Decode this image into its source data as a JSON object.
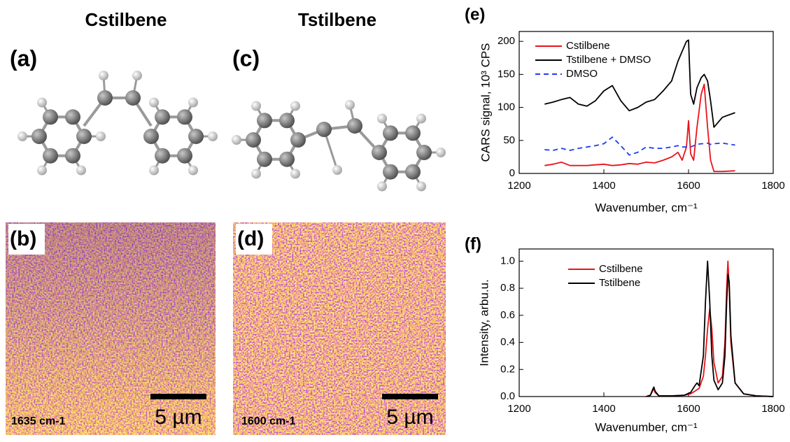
{
  "columns": [
    "Cstilbene",
    "Tstilbene"
  ],
  "panels": {
    "a": "(a)",
    "b": "(b)",
    "c": "(c)",
    "d": "(d)",
    "e": "(e)",
    "f": "(f)"
  },
  "maps": [
    {
      "wavenumber": "1635 cm-1",
      "scale": "5 µm"
    },
    {
      "wavenumber": "1600 cm-1",
      "scale": "5 µm"
    }
  ],
  "chart_data": [
    {
      "type": "line",
      "x_label": "Wavenumber, cm⁻¹",
      "y_label": "CARS signal, 10³ CPS",
      "xlim": [
        1200,
        1800
      ],
      "xticks": [
        1200,
        1400,
        1600,
        1800
      ],
      "ylim": [
        0,
        215
      ],
      "yticks": [
        0,
        50,
        100,
        150,
        200
      ],
      "x": [
        1260,
        1280,
        1300,
        1320,
        1340,
        1360,
        1380,
        1400,
        1420,
        1440,
        1460,
        1480,
        1500,
        1520,
        1540,
        1560,
        1575,
        1585,
        1595,
        1600,
        1605,
        1612,
        1620,
        1630,
        1637,
        1645,
        1652,
        1660,
        1680,
        1710
      ],
      "series": [
        {
          "name": "Cstilbene",
          "color": "#e8141b",
          "dashed": false,
          "values": [
            12,
            14,
            17,
            12,
            12,
            12,
            13,
            14,
            12,
            13,
            15,
            14,
            17,
            16,
            20,
            25,
            32,
            20,
            40,
            80,
            30,
            20,
            70,
            120,
            135,
            70,
            20,
            3,
            3,
            4
          ]
        },
        {
          "name": "Tstilbene + DMSO",
          "color": "#000000",
          "dashed": false,
          "values": [
            105,
            108,
            112,
            115,
            105,
            102,
            110,
            125,
            133,
            110,
            95,
            100,
            108,
            112,
            125,
            140,
            170,
            185,
            200,
            202,
            120,
            105,
            130,
            145,
            150,
            140,
            110,
            70,
            85,
            92
          ]
        },
        {
          "name": "DMSO",
          "color": "#1f3cf0",
          "dashed": true,
          "values": [
            36,
            35,
            38,
            35,
            38,
            40,
            42,
            45,
            55,
            42,
            28,
            32,
            40,
            38,
            38,
            40,
            42,
            40,
            40,
            40,
            40,
            42,
            44,
            45,
            45,
            46,
            44,
            45,
            46,
            43
          ]
        }
      ]
    },
    {
      "type": "line",
      "x_label": "Wavenumber, cm⁻¹",
      "y_label": "Intensity, arbu.u.",
      "xlim": [
        1200,
        1800
      ],
      "xticks": [
        1200,
        1400,
        1600,
        1800
      ],
      "ylim": [
        0,
        1.09
      ],
      "yticks": [
        {
          "value": 0,
          "label": "0.0"
        },
        {
          "value": 0.2,
          "label": "0.2"
        },
        {
          "value": 0.4,
          "label": "0.4"
        },
        {
          "value": 0.6,
          "label": "0.6"
        },
        {
          "value": 0.8,
          "label": "0.8"
        },
        {
          "value": 1,
          "label": "1.0"
        }
      ],
      "x": [
        1500,
        1510,
        1515,
        1518,
        1521,
        1530,
        1560,
        1590,
        1605,
        1615,
        1620,
        1625,
        1635,
        1640,
        1645,
        1650,
        1655,
        1660,
        1670,
        1680,
        1686,
        1690,
        1693,
        1696,
        1700,
        1710,
        1730,
        1760,
        1800
      ],
      "series": [
        {
          "name": "Cstilbene",
          "color": "#e8141b",
          "dashed": false,
          "values": [
            0,
            0.01,
            0.04,
            0.06,
            0.03,
            0.005,
            0.005,
            0.01,
            0.02,
            0.04,
            0.05,
            0.06,
            0.15,
            0.3,
            0.5,
            0.65,
            0.5,
            0.25,
            0.1,
            0.15,
            0.4,
            0.8,
            1.0,
            0.8,
            0.4,
            0.1,
            0.02,
            0.005,
            0
          ]
        },
        {
          "name": "Tstilbene",
          "color": "#000000",
          "dashed": false,
          "values": [
            0,
            0.01,
            0.05,
            0.07,
            0.04,
            0.005,
            0.005,
            0.01,
            0.03,
            0.08,
            0.1,
            0.08,
            0.3,
            0.7,
            1.0,
            0.7,
            0.3,
            0.12,
            0.05,
            0.1,
            0.3,
            0.7,
            0.9,
            0.85,
            0.45,
            0.1,
            0.02,
            0.005,
            0
          ]
        }
      ]
    }
  ]
}
